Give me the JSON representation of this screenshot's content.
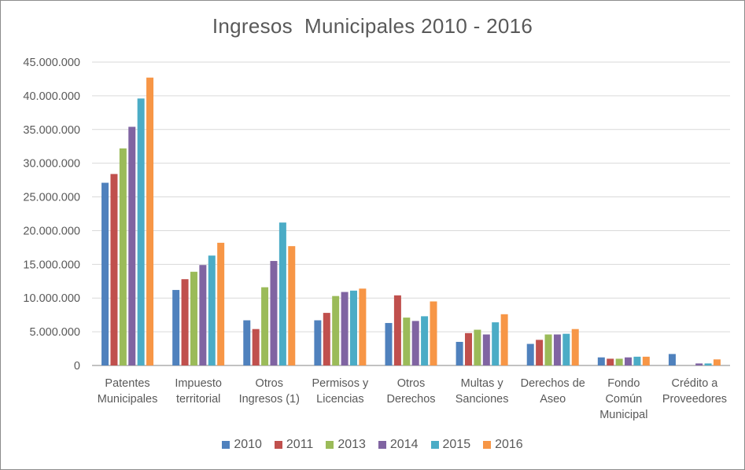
{
  "chart_data": {
    "type": "bar",
    "title": "Ingresos  Municipales 2010 - 2016",
    "categories": [
      [
        "Patentes",
        "Municipales"
      ],
      [
        "Impuesto",
        "territorial"
      ],
      [
        "Otros",
        "Ingresos (1)"
      ],
      [
        "Permisos y",
        "Licencias"
      ],
      [
        "Otros",
        "Derechos"
      ],
      [
        "Multas y",
        "Sanciones"
      ],
      [
        "Derechos de",
        "Aseo"
      ],
      [
        "Fondo",
        "Común",
        "Municipal"
      ],
      [
        "Crédito a",
        "Proveedores"
      ]
    ],
    "series": [
      {
        "name": "2010",
        "color": "#4f81bd",
        "values": [
          27100000,
          11200000,
          6700000,
          6700000,
          6300000,
          3500000,
          3200000,
          1200000,
          1700000
        ]
      },
      {
        "name": "2011",
        "color": "#c0504d",
        "values": [
          28400000,
          12800000,
          5400000,
          7800000,
          10400000,
          4800000,
          3800000,
          1000000,
          0
        ]
      },
      {
        "name": "2013",
        "color": "#9bbb59",
        "values": [
          32200000,
          13900000,
          11600000,
          10300000,
          7100000,
          5300000,
          4600000,
          1000000,
          0
        ]
      },
      {
        "name": "2014",
        "color": "#8064a2",
        "values": [
          35400000,
          14900000,
          15500000,
          10900000,
          6600000,
          4600000,
          4600000,
          1200000,
          300000
        ]
      },
      {
        "name": "2015",
        "color": "#4bacc6",
        "values": [
          39600000,
          16300000,
          21200000,
          11100000,
          7300000,
          6400000,
          4700000,
          1300000,
          300000
        ]
      },
      {
        "name": "2016",
        "color": "#f79646",
        "values": [
          42700000,
          18200000,
          17700000,
          11400000,
          9500000,
          7600000,
          5400000,
          1300000,
          900000
        ]
      }
    ],
    "ylim": [
      0,
      45000000
    ],
    "yticks": [
      "0",
      "5.000.000",
      "10.000.000",
      "15.000.000",
      "20.000.000",
      "25.000.000",
      "30.000.000",
      "35.000.000",
      "40.000.000",
      "45.000.000"
    ],
    "ytick_values": [
      0,
      5000000,
      10000000,
      15000000,
      20000000,
      25000000,
      30000000,
      35000000,
      40000000,
      45000000
    ],
    "grid": true,
    "legend_position": "bottom"
  }
}
